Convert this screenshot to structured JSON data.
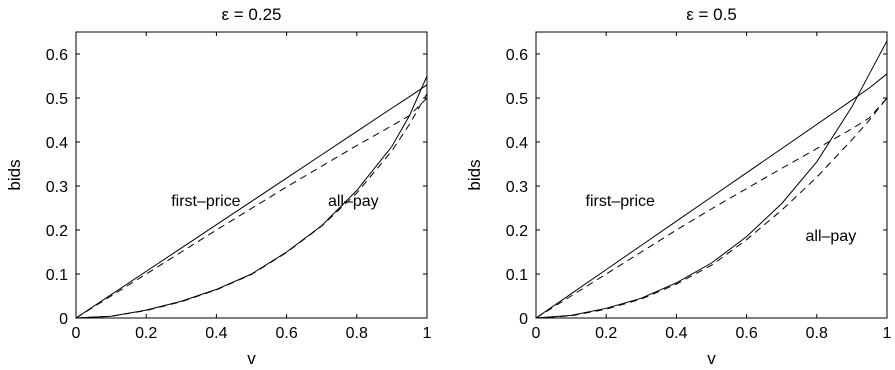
{
  "chart_data": [
    {
      "type": "line",
      "title": "ε = 0.25",
      "xlabel": "v",
      "ylabel": "bids",
      "xlim": [
        0,
        1
      ],
      "ylim": [
        0,
        0.65
      ],
      "xticks": [
        "0",
        "0.2",
        "0.4",
        "0.6",
        "0.8",
        "1"
      ],
      "yticks": [
        "0",
        "0.1",
        "0.2",
        "0.3",
        "0.4",
        "0.5",
        "0.6"
      ],
      "grid": false,
      "x": [
        0,
        0.1,
        0.2,
        0.3,
        0.4,
        0.5,
        0.6,
        0.7,
        0.8,
        0.9,
        0.95,
        1.0
      ],
      "series": [
        {
          "style": "solid",
          "values": [
            0,
            0.053,
            0.106,
            0.159,
            0.212,
            0.265,
            0.318,
            0.371,
            0.424,
            0.477,
            0.503,
            0.53
          ]
        },
        {
          "style": "dashed",
          "values": [
            0,
            0.05,
            0.1,
            0.15,
            0.2,
            0.249,
            0.298,
            0.345,
            0.392,
            0.437,
            0.46,
            0.5
          ]
        },
        {
          "style": "solid",
          "values": [
            0,
            0.004,
            0.018,
            0.038,
            0.065,
            0.1,
            0.15,
            0.21,
            0.29,
            0.39,
            0.46,
            0.55
          ]
        },
        {
          "style": "dashed",
          "values": [
            0,
            0.004,
            0.017,
            0.037,
            0.064,
            0.099,
            0.149,
            0.209,
            0.284,
            0.38,
            0.44,
            0.51
          ]
        }
      ],
      "annotations": [
        {
          "text": "first–price",
          "x": 0.37,
          "y": 0.255
        },
        {
          "text": "all–pay",
          "x": 0.79,
          "y": 0.255
        }
      ]
    },
    {
      "type": "line",
      "title": "ε = 0.5",
      "xlabel": "v",
      "ylabel": "bids",
      "xlim": [
        0,
        1
      ],
      "ylim": [
        0,
        0.65
      ],
      "xticks": [
        "0",
        "0.2",
        "0.4",
        "0.6",
        "0.8",
        "1"
      ],
      "yticks": [
        "0",
        "0.1",
        "0.2",
        "0.3",
        "0.4",
        "0.5",
        "0.6"
      ],
      "grid": false,
      "x": [
        0,
        0.1,
        0.2,
        0.3,
        0.4,
        0.5,
        0.6,
        0.7,
        0.8,
        0.9,
        0.95,
        1.0
      ],
      "series": [
        {
          "style": "solid",
          "values": [
            0,
            0.055,
            0.11,
            0.165,
            0.22,
            0.275,
            0.33,
            0.385,
            0.44,
            0.495,
            0.523,
            0.555
          ]
        },
        {
          "style": "dashed",
          "values": [
            0,
            0.05,
            0.1,
            0.15,
            0.2,
            0.248,
            0.294,
            0.34,
            0.385,
            0.43,
            0.455,
            0.5
          ]
        },
        {
          "style": "solid",
          "values": [
            0,
            0.006,
            0.022,
            0.045,
            0.08,
            0.125,
            0.185,
            0.26,
            0.355,
            0.48,
            0.555,
            0.63
          ]
        },
        {
          "style": "dashed",
          "values": [
            0,
            0.005,
            0.02,
            0.043,
            0.077,
            0.12,
            0.178,
            0.245,
            0.32,
            0.405,
            0.45,
            0.5
          ]
        }
      ],
      "annotations": [
        {
          "text": "first–price",
          "x": 0.24,
          "y": 0.255
        },
        {
          "text": "all–pay",
          "x": 0.84,
          "y": 0.175
        }
      ]
    }
  ]
}
